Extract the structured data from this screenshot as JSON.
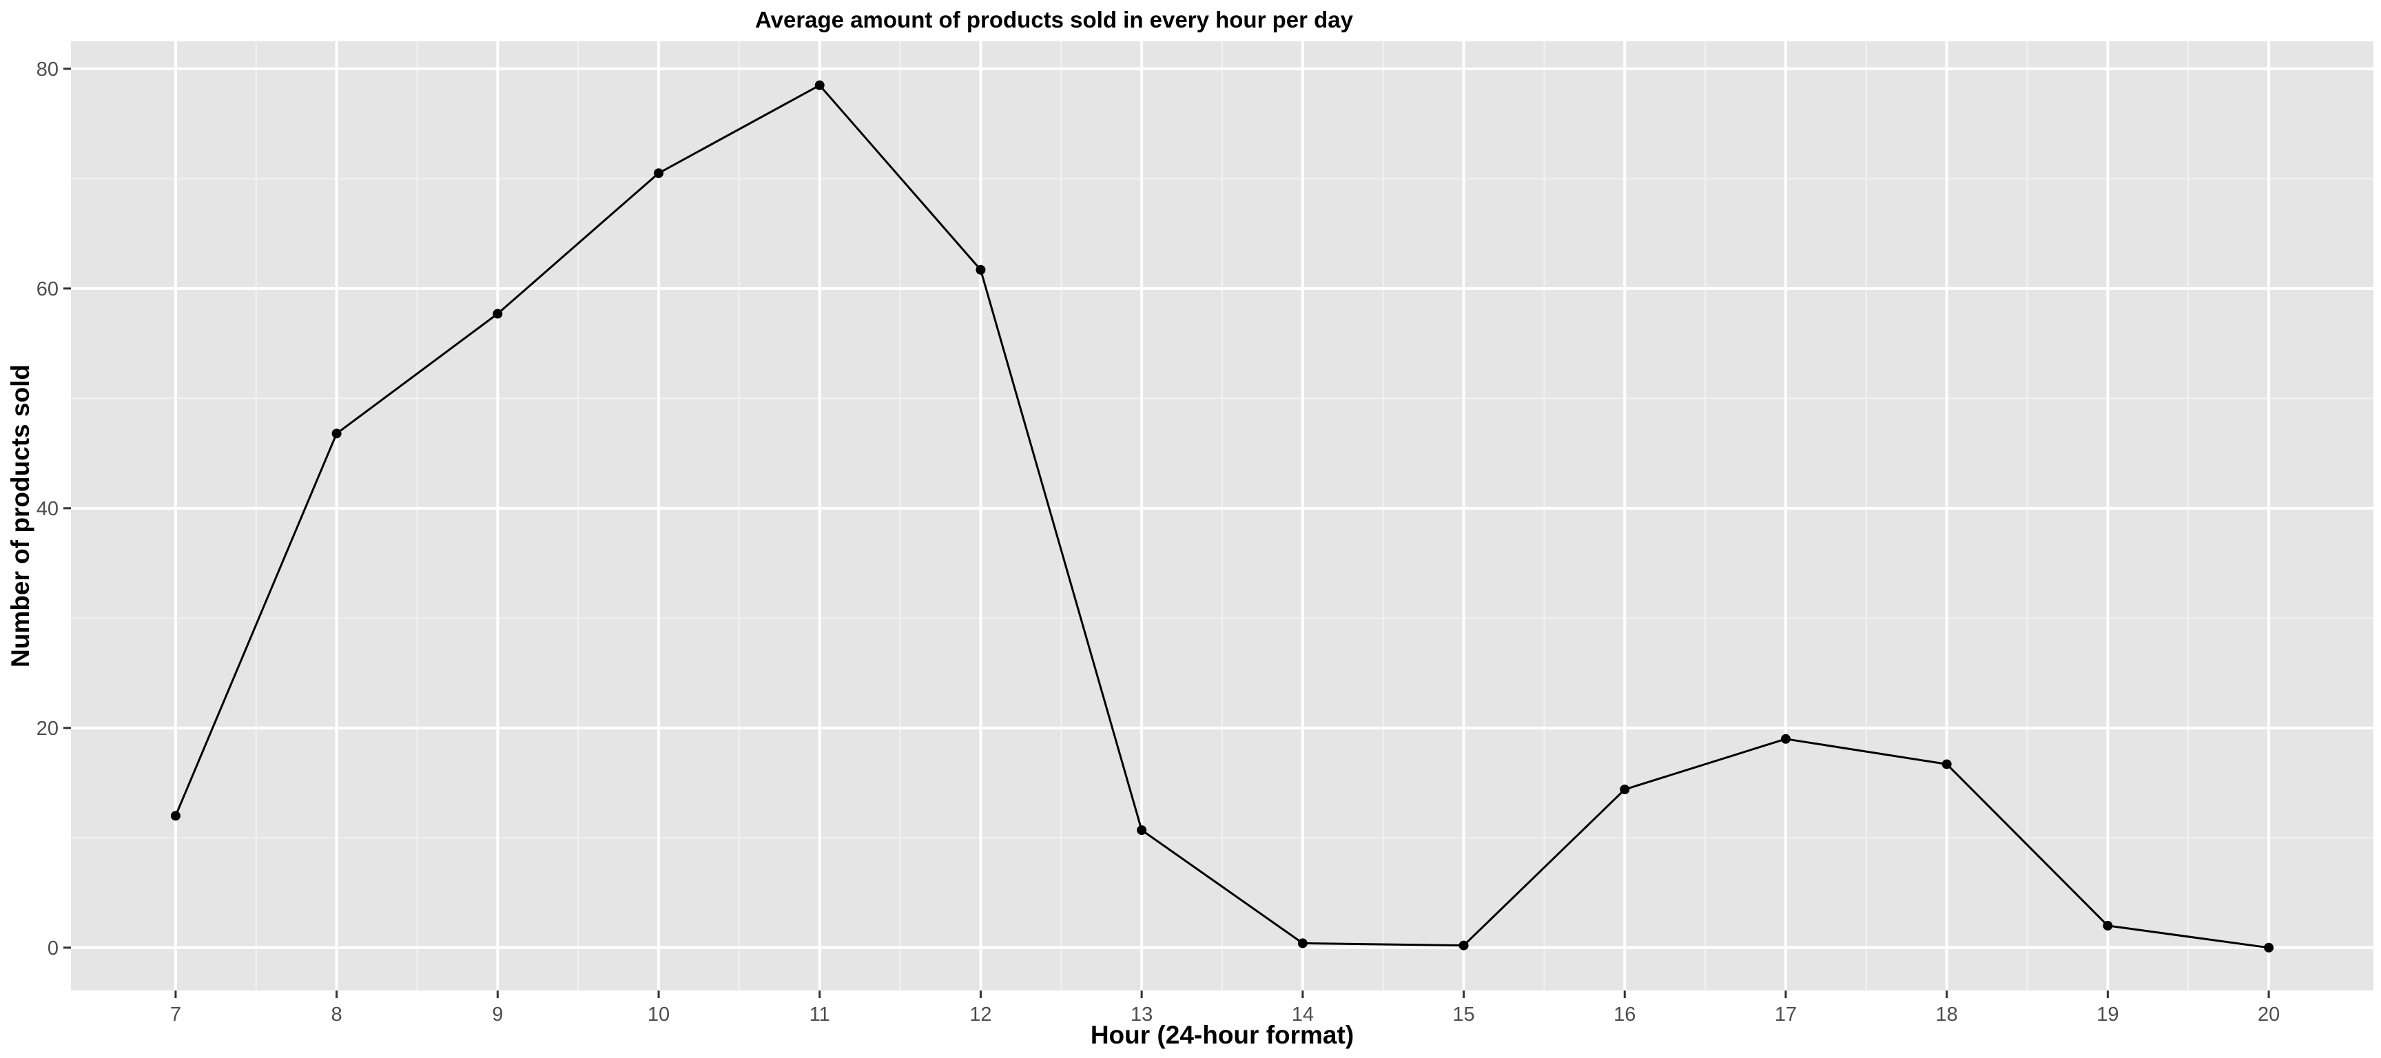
{
  "chart_data": {
    "type": "line",
    "title": "Average amount of products sold in every hour per day",
    "xlabel": "Hour (24-hour format)",
    "ylabel": "Number of products sold",
    "x": [
      7,
      8,
      9,
      10,
      11,
      12,
      13,
      14,
      15,
      16,
      17,
      18,
      19,
      20
    ],
    "y": [
      12,
      46.8,
      57.7,
      70.5,
      78.5,
      61.7,
      10.7,
      0.4,
      0.2,
      14.4,
      19,
      16.7,
      2,
      0
    ],
    "xlim": [
      6.35,
      20.65
    ],
    "ylim": [
      -3.9,
      82.5
    ],
    "x_ticks": [
      "7",
      "8",
      "9",
      "10",
      "11",
      "12",
      "13",
      "14",
      "15",
      "16",
      "17",
      "18",
      "19",
      "20"
    ],
    "y_ticks": [
      "0",
      "20",
      "40",
      "60",
      "80"
    ],
    "grid": true,
    "colors": {
      "panel_background": "#e5e5e5",
      "grid_major": "#ffffff",
      "grid_minor": "#f2f2f2",
      "line": "#000000",
      "point": "#000000",
      "tick_text": "#4d4d4d",
      "tick_mark": "#333333"
    }
  }
}
